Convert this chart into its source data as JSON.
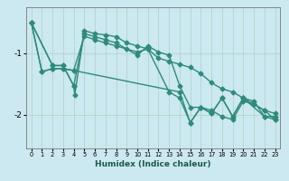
{
  "title": "",
  "xlabel": "Humidex (Indice chaleur)",
  "bg_color": "#cce8f0",
  "grid_color": "#b0d8c8",
  "line_color": "#2e8b7a",
  "marker": "D",
  "markersize": 2.5,
  "linewidth": 1.0,
  "xlim": [
    -0.5,
    23.5
  ],
  "ylim": [
    -2.55,
    -0.25
  ],
  "yticks": [
    -2,
    -1
  ],
  "xticks": [
    0,
    1,
    2,
    3,
    4,
    5,
    6,
    7,
    8,
    9,
    10,
    11,
    12,
    13,
    14,
    15,
    16,
    17,
    18,
    19,
    20,
    21,
    22,
    23
  ],
  "series": [
    {
      "x": [
        0,
        1,
        2,
        3,
        4,
        5,
        6,
        7,
        8,
        9,
        10,
        11,
        12,
        13,
        14,
        15,
        16,
        17,
        18,
        19,
        20,
        21,
        22,
        23
      ],
      "y": [
        -0.5,
        -1.3,
        -1.25,
        -1.25,
        -1.28,
        -0.72,
        -0.78,
        -0.83,
        -0.88,
        -0.93,
        -0.98,
        -0.93,
        -1.08,
        -1.13,
        -1.18,
        -1.23,
        -1.33,
        -1.48,
        -1.58,
        -1.63,
        -1.73,
        -1.83,
        -1.93,
        -1.98
      ]
    },
    {
      "x": [
        0,
        2,
        3,
        4,
        5,
        6,
        7,
        8,
        10,
        11,
        12,
        13,
        14,
        15,
        16,
        17,
        18,
        19,
        20,
        21,
        22,
        23
      ],
      "y": [
        -0.5,
        -1.2,
        -1.2,
        -1.53,
        -0.68,
        -0.73,
        -0.78,
        -0.83,
        -1.03,
        -0.88,
        -0.98,
        -1.03,
        -1.53,
        -1.88,
        -1.88,
        -1.98,
        -1.73,
        -2.03,
        -1.73,
        -1.78,
        -2.03,
        -2.08
      ]
    },
    {
      "x": [
        0,
        2,
        3,
        4,
        4.1,
        5,
        6,
        7,
        8,
        9,
        10,
        11,
        13,
        14,
        15,
        16,
        17,
        18,
        19,
        20,
        21,
        22,
        23
      ],
      "y": [
        -0.5,
        -1.2,
        -1.2,
        -1.53,
        -1.68,
        -0.63,
        -0.68,
        -0.7,
        -0.73,
        -0.83,
        -0.88,
        -0.93,
        -1.63,
        -1.73,
        -2.13,
        -1.88,
        -1.93,
        -2.03,
        -2.08,
        -1.78,
        -1.83,
        -1.93,
        -2.08
      ]
    },
    {
      "x": [
        0,
        1,
        2,
        3,
        4,
        14,
        15,
        16,
        17,
        18,
        19,
        20,
        22,
        23
      ],
      "y": [
        -0.5,
        -1.3,
        -1.25,
        -1.25,
        -1.28,
        -1.63,
        -2.13,
        -1.88,
        -1.98,
        -1.73,
        -2.03,
        -1.73,
        -2.03,
        -2.03
      ]
    }
  ]
}
